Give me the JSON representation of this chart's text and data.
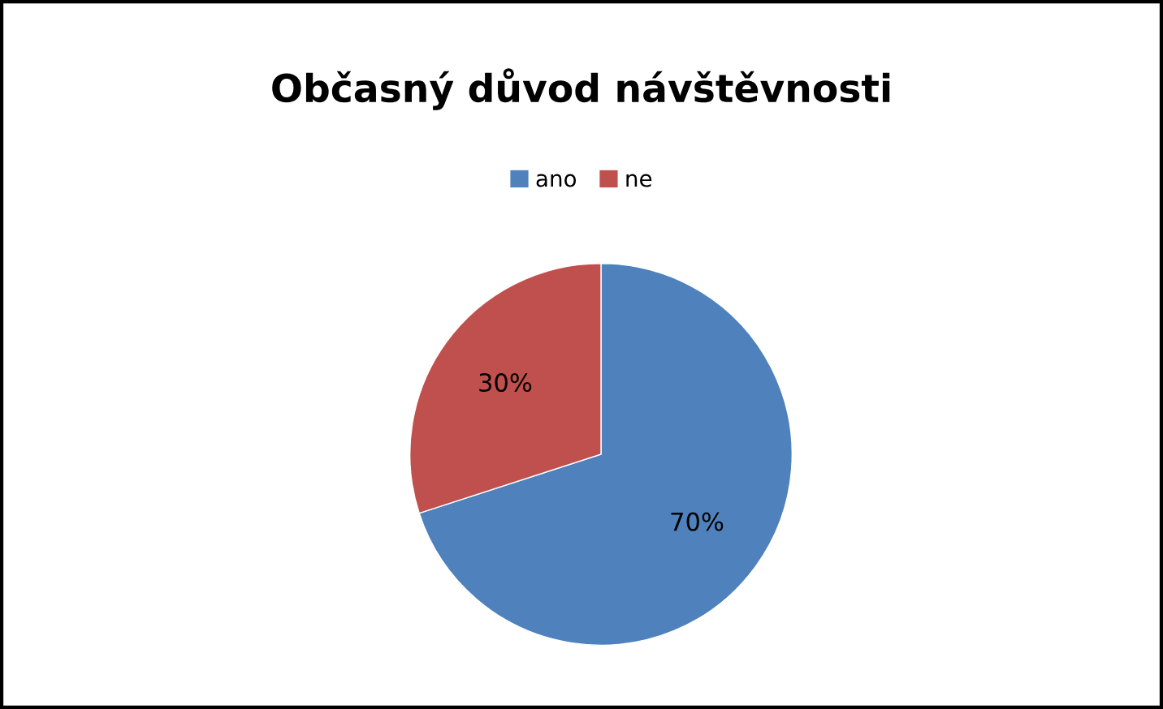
{
  "chart_data": {
    "type": "pie",
    "title": "Občasný důvod návštěvnosti",
    "categories": [
      "ano",
      "ne"
    ],
    "values": [
      70,
      30
    ],
    "colors": [
      "#4f81bd",
      "#c0504d"
    ],
    "value_labels": [
      "70%",
      "30%"
    ],
    "legend": "top"
  }
}
